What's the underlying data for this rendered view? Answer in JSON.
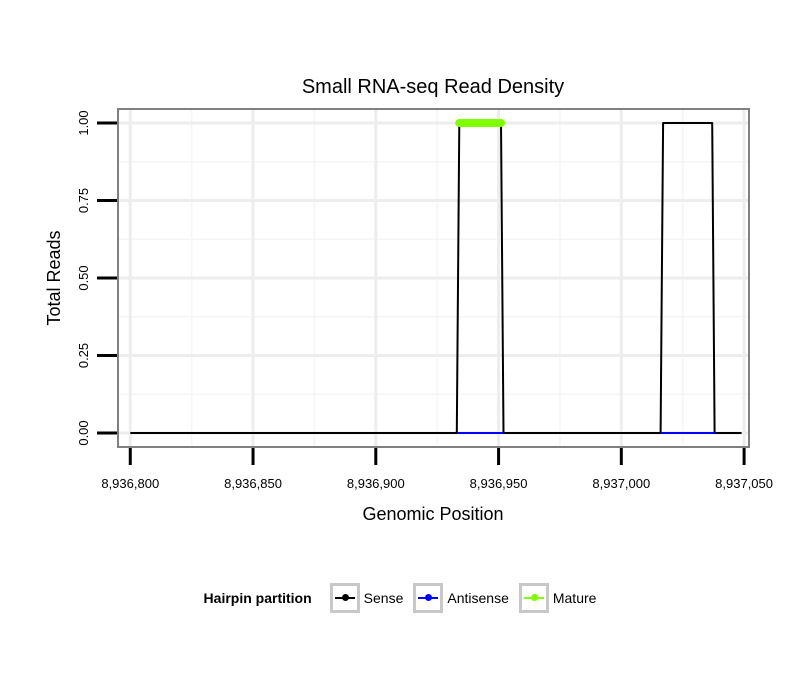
{
  "chart_data": {
    "type": "line",
    "title": "Small RNA-seq Read Density",
    "xlabel": "Genomic Position",
    "ylabel": "Total Reads",
    "xlim": [
      8936795,
      8937052
    ],
    "ylim": [
      -0.045,
      1.045
    ],
    "x_ticks": [
      8936800,
      8936850,
      8936900,
      8936950,
      8937000,
      8937050
    ],
    "x_tick_labels": [
      "8,936,800",
      "8,936,850",
      "8,936,900",
      "8,936,950",
      "8,937,000",
      "8,937,050"
    ],
    "y_ticks": [
      0,
      0.25,
      0.5,
      0.75,
      1.0
    ],
    "y_tick_labels": [
      "0.00",
      "0.25",
      "0.50",
      "0.75",
      "1.00"
    ],
    "grid": true,
    "legend_position": "bottom",
    "legend_title": "Hairpin partition",
    "series": [
      {
        "name": "Sense",
        "color": "#000000",
        "x": [
          8936800,
          8936933,
          8936934,
          8936951,
          8936952,
          8937016,
          8937017,
          8937037,
          8937038,
          8937049
        ],
        "values": [
          0,
          0,
          1,
          1,
          0,
          0,
          1,
          1,
          0,
          0
        ]
      },
      {
        "name": "Antisense",
        "color": "#0000ff",
        "x": [
          8936933,
          8936952,
          8937016,
          8937038
        ],
        "values": [
          0,
          0,
          0,
          0
        ]
      },
      {
        "name": "Mature",
        "color": "#7fff00",
        "x": [
          8936934,
          8936951
        ],
        "values": [
          1,
          1
        ]
      }
    ]
  }
}
